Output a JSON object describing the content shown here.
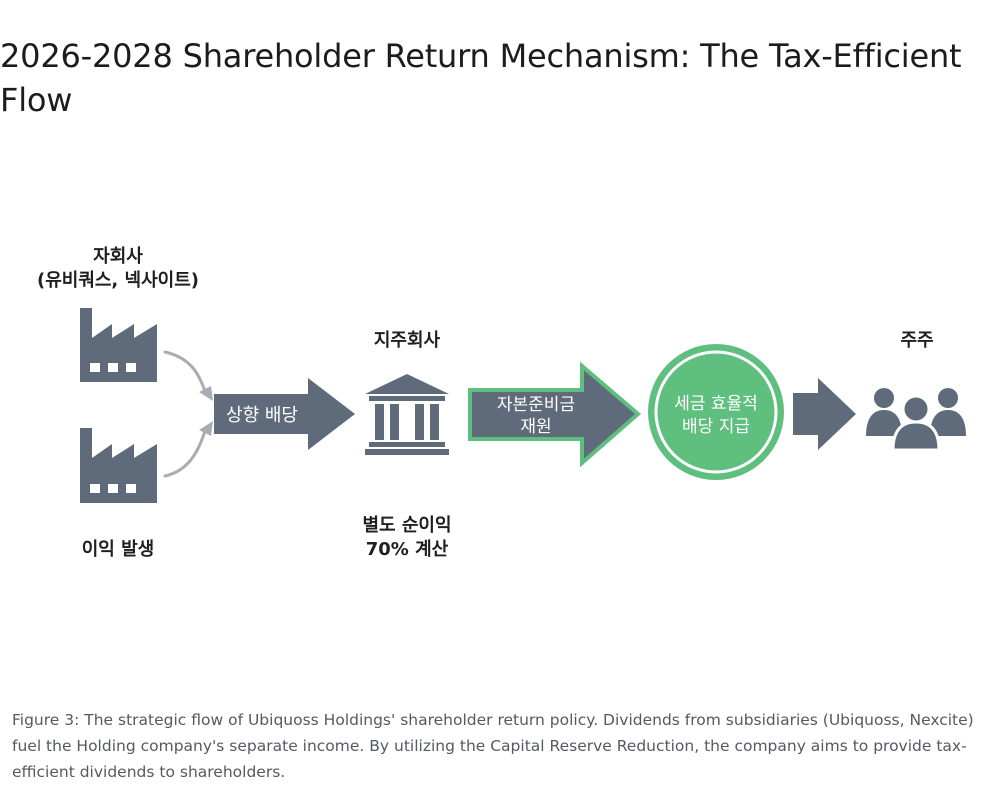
{
  "title": "2026-2028 Shareholder Return Mechanism: The Tax-Efficient Flow",
  "diagram": {
    "subsidiary": {
      "label_line1": "자회사",
      "label_line2": "(유비쿼스, 넥사이트)",
      "profit_label": "이익 발생",
      "icon": "factory-icon"
    },
    "upstream_arrow_label": "상향 배당",
    "holding": {
      "label": "지주회사",
      "icon": "bank-building-icon",
      "note_line1": "별도 순이익",
      "note_line2": "70% 계산"
    },
    "reserve_arrow": {
      "line1": "자본준비금",
      "line2": "재원"
    },
    "dividend_circle": {
      "line1": "세금 효율적",
      "line2": "배당 지급"
    },
    "shareholders": {
      "label": "주주",
      "icon": "people-group-icon"
    }
  },
  "caption": "Figure 3: The strategic flow of Ubiquoss Holdings' shareholder return policy. Dividends from subsidiaries (Ubiquoss, Nexcite) fuel the Holding company's separate income. By utilizing the Capital Reserve Reduction, the company aims to provide tax-efficient dividends to shareholders.",
  "colors": {
    "slate": "#5f6b7a",
    "green": "#5fbf7f",
    "green_dark": "#3d9e5d",
    "connector": "#a8adb3"
  }
}
